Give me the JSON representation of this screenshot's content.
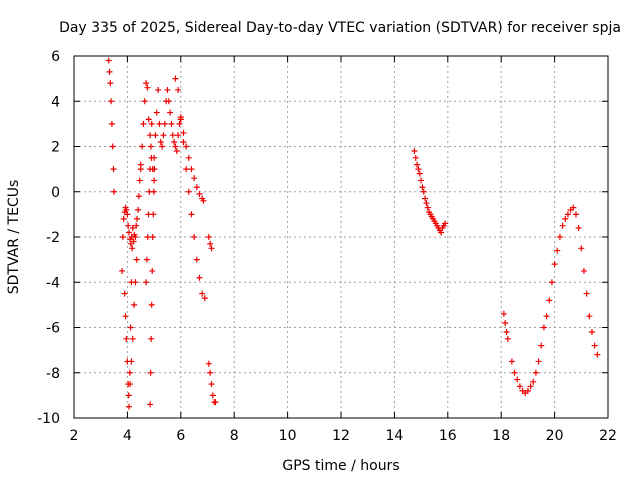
{
  "chart_data": {
    "type": "scatter",
    "title": "Day 335 of 2025, Sidereal Day-to-day VTEC variation (SDTVAR) for receiver spja",
    "xlabel": "GPS time / hours",
    "ylabel": "SDTVAR / TECUs",
    "xlim": [
      2,
      22
    ],
    "ylim": [
      -10,
      6
    ],
    "xticks": [
      "2",
      "4",
      "6",
      "8",
      "10",
      "12",
      "14",
      "16",
      "18",
      "20",
      "22"
    ],
    "yticks": [
      "6",
      "4",
      "2",
      "0",
      "-2",
      "-4",
      "-6",
      "-8",
      "-10"
    ],
    "grid": true,
    "marker": "+",
    "color": "#ee0000",
    "series": [
      {
        "name": "SDTVAR",
        "x": [
          3.3,
          3.33,
          3.36,
          3.39,
          3.42,
          3.45,
          3.48,
          3.5,
          3.8,
          3.83,
          3.86,
          3.9,
          3.93,
          3.96,
          4.0,
          4.03,
          4.06,
          4.1,
          4.13,
          4.16,
          4.2,
          4.23,
          4.26,
          4.3,
          4.33,
          4.36,
          4.4,
          4.43,
          4.46,
          4.5,
          3.9,
          3.93,
          3.96,
          4.0,
          4.03,
          4.06,
          4.09,
          4.12,
          4.15,
          4.18,
          4.05,
          4.1,
          4.15,
          4.2,
          4.25,
          4.3,
          4.35,
          4.5,
          4.55,
          4.6,
          4.65,
          4.7,
          4.75,
          4.8,
          4.85,
          4.9,
          4.95,
          5.0,
          4.7,
          4.73,
          4.76,
          4.79,
          4.82,
          4.85,
          4.88,
          4.91,
          4.85,
          4.87,
          4.89,
          4.91,
          4.93,
          4.95,
          4.97,
          4.99,
          5.01,
          5.0,
          5.05,
          5.1,
          5.15,
          5.2,
          5.25,
          5.3,
          5.35,
          5.4,
          5.45,
          5.5,
          5.55,
          5.6,
          5.65,
          5.7,
          5.75,
          5.8,
          5.85,
          5.9,
          5.95,
          6.0,
          6.0,
          6.1,
          6.2,
          6.3,
          6.4,
          6.5,
          6.6,
          6.7,
          6.8,
          6.85,
          5.8,
          5.9,
          6.0,
          6.1,
          6.2,
          6.3,
          6.4,
          6.5,
          6.6,
          6.7,
          6.8,
          6.9,
          7.05,
          7.1,
          7.15,
          7.2,
          7.25,
          7.3,
          7.05,
          7.1,
          7.15,
          14.75,
          14.8,
          14.85,
          14.9,
          14.95,
          15.0,
          15.05,
          15.1,
          15.15,
          15.2,
          15.25,
          15.3,
          15.35,
          15.4,
          15.45,
          15.5,
          15.55,
          15.6,
          15.65,
          15.7,
          15.75,
          15.8,
          15.85,
          15.9,
          18.1,
          18.15,
          18.2,
          18.25,
          18.4,
          18.5,
          18.6,
          18.7,
          18.8,
          18.9,
          19.0,
          19.1,
          19.2,
          19.3,
          19.4,
          19.5,
          19.6,
          19.7,
          19.8,
          19.9,
          20.0,
          20.1,
          20.2,
          20.3,
          20.4,
          20.5,
          20.6,
          20.7,
          20.8,
          20.9,
          21.0,
          21.1,
          21.2,
          21.3,
          21.4,
          21.5,
          21.6
        ],
        "y": [
          5.8,
          5.3,
          4.8,
          4.0,
          3.0,
          2.0,
          1.0,
          0.0,
          -3.5,
          -2.0,
          -1.2,
          -0.9,
          -0.7,
          -0.8,
          -1.0,
          -1.5,
          -1.8,
          -2.1,
          -2.3,
          -2.0,
          -1.6,
          -2.2,
          -1.9,
          -2.0,
          -1.5,
          -1.2,
          -0.8,
          -0.2,
          0.5,
          1.2,
          -4.5,
          -5.5,
          -6.5,
          -7.5,
          -8.5,
          -9.5,
          -8.0,
          -6.0,
          -4.0,
          -2.5,
          -9.0,
          -8.5,
          -7.5,
          -6.5,
          -5.0,
          -4.0,
          -3.0,
          1.0,
          2.0,
          3.0,
          4.0,
          4.8,
          4.6,
          3.2,
          2.5,
          1.5,
          1.0,
          0.5,
          -4.0,
          -3.0,
          -2.0,
          -1.0,
          0.0,
          1.0,
          2.0,
          3.0,
          -9.4,
          -8.0,
          -6.5,
          -5.0,
          -3.5,
          -2.0,
          -1.0,
          0.0,
          1.0,
          1.5,
          2.5,
          3.5,
          4.5,
          3.0,
          2.2,
          2.0,
          2.5,
          3.0,
          4.0,
          4.5,
          4.0,
          3.5,
          3.0,
          2.5,
          2.2,
          2.0,
          1.8,
          2.5,
          3.0,
          3.3,
          3.2,
          2.6,
          2.0,
          1.5,
          1.0,
          0.6,
          0.2,
          -0.1,
          -0.3,
          -0.4,
          5.0,
          4.5,
          3.2,
          2.2,
          1.0,
          0.0,
          -1.0,
          -2.0,
          -3.0,
          -3.8,
          -4.5,
          -4.7,
          -7.6,
          -8.0,
          -8.5,
          -9.0,
          -9.3,
          -9.3,
          -2.0,
          -2.3,
          -2.5,
          1.8,
          1.5,
          1.2,
          1.0,
          0.8,
          0.5,
          0.2,
          0.0,
          -0.3,
          -0.5,
          -0.7,
          -0.9,
          -1.0,
          -1.1,
          -1.2,
          -1.3,
          -1.4,
          -1.5,
          -1.6,
          -1.7,
          -1.8,
          -1.6,
          -1.5,
          -1.4,
          -5.4,
          -5.8,
          -6.2,
          -6.5,
          -7.5,
          -8.0,
          -8.3,
          -8.6,
          -8.8,
          -8.9,
          -8.8,
          -8.6,
          -8.4,
          -8.0,
          -7.5,
          -6.8,
          -6.0,
          -5.5,
          -4.8,
          -4.0,
          -3.2,
          -2.6,
          -2.0,
          -1.5,
          -1.2,
          -1.0,
          -0.8,
          -0.7,
          -1.0,
          -1.6,
          -2.5,
          -3.5,
          -4.5,
          -5.5,
          -6.2,
          -6.8,
          -7.2
        ]
      }
    ]
  }
}
